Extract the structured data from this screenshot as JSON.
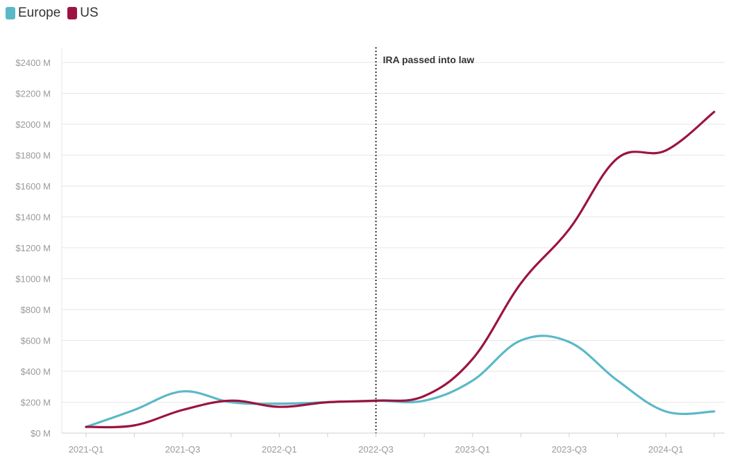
{
  "legend": {
    "items": [
      {
        "label": "Europe",
        "color": "#5bb8c8"
      },
      {
        "label": "US",
        "color": "#9b1440"
      }
    ]
  },
  "chart_data": {
    "type": "line",
    "title": "",
    "xlabel": "",
    "ylabel": "",
    "categories": [
      "2021-Q1",
      "2021-Q2",
      "2021-Q3",
      "2021-Q4",
      "2022-Q1",
      "2022-Q2",
      "2022-Q3",
      "2022-Q4",
      "2023-Q1",
      "2023-Q2",
      "2023-Q3",
      "2023-Q4",
      "2024-Q1",
      "2024-Q2"
    ],
    "x_tick_labels": [
      "2021-Q1",
      "2021-Q3",
      "2022-Q1",
      "2022-Q3",
      "2023-Q1",
      "2023-Q3",
      "2024-Q1"
    ],
    "y_tick_labels": [
      "$0 M",
      "$200 M",
      "$400 M",
      "$600 M",
      "$800 M",
      "$1000 M",
      "$1200 M",
      "$1400 M",
      "$1600 M",
      "$1800 M",
      "$2000 M",
      "$2200 M",
      "$2400 M"
    ],
    "y_ticks": [
      0,
      200,
      400,
      600,
      800,
      1000,
      1200,
      1400,
      1600,
      1800,
      2000,
      2200,
      2400
    ],
    "ylim": [
      0,
      2400
    ],
    "grid": true,
    "legend_position": "top-left",
    "series": [
      {
        "name": "Europe",
        "color": "#5bb8c8",
        "values": [
          40,
          150,
          270,
          200,
          190,
          200,
          210,
          210,
          340,
          600,
          590,
          340,
          140,
          140
        ]
      },
      {
        "name": "US",
        "color": "#9b1440",
        "values": [
          40,
          50,
          150,
          210,
          170,
          200,
          210,
          240,
          480,
          970,
          1320,
          1780,
          1830,
          2080
        ]
      }
    ],
    "annotations": [
      {
        "label": "IRA passed into law",
        "x": "2022-Q3",
        "style": "dotted-vertical-line"
      }
    ]
  }
}
